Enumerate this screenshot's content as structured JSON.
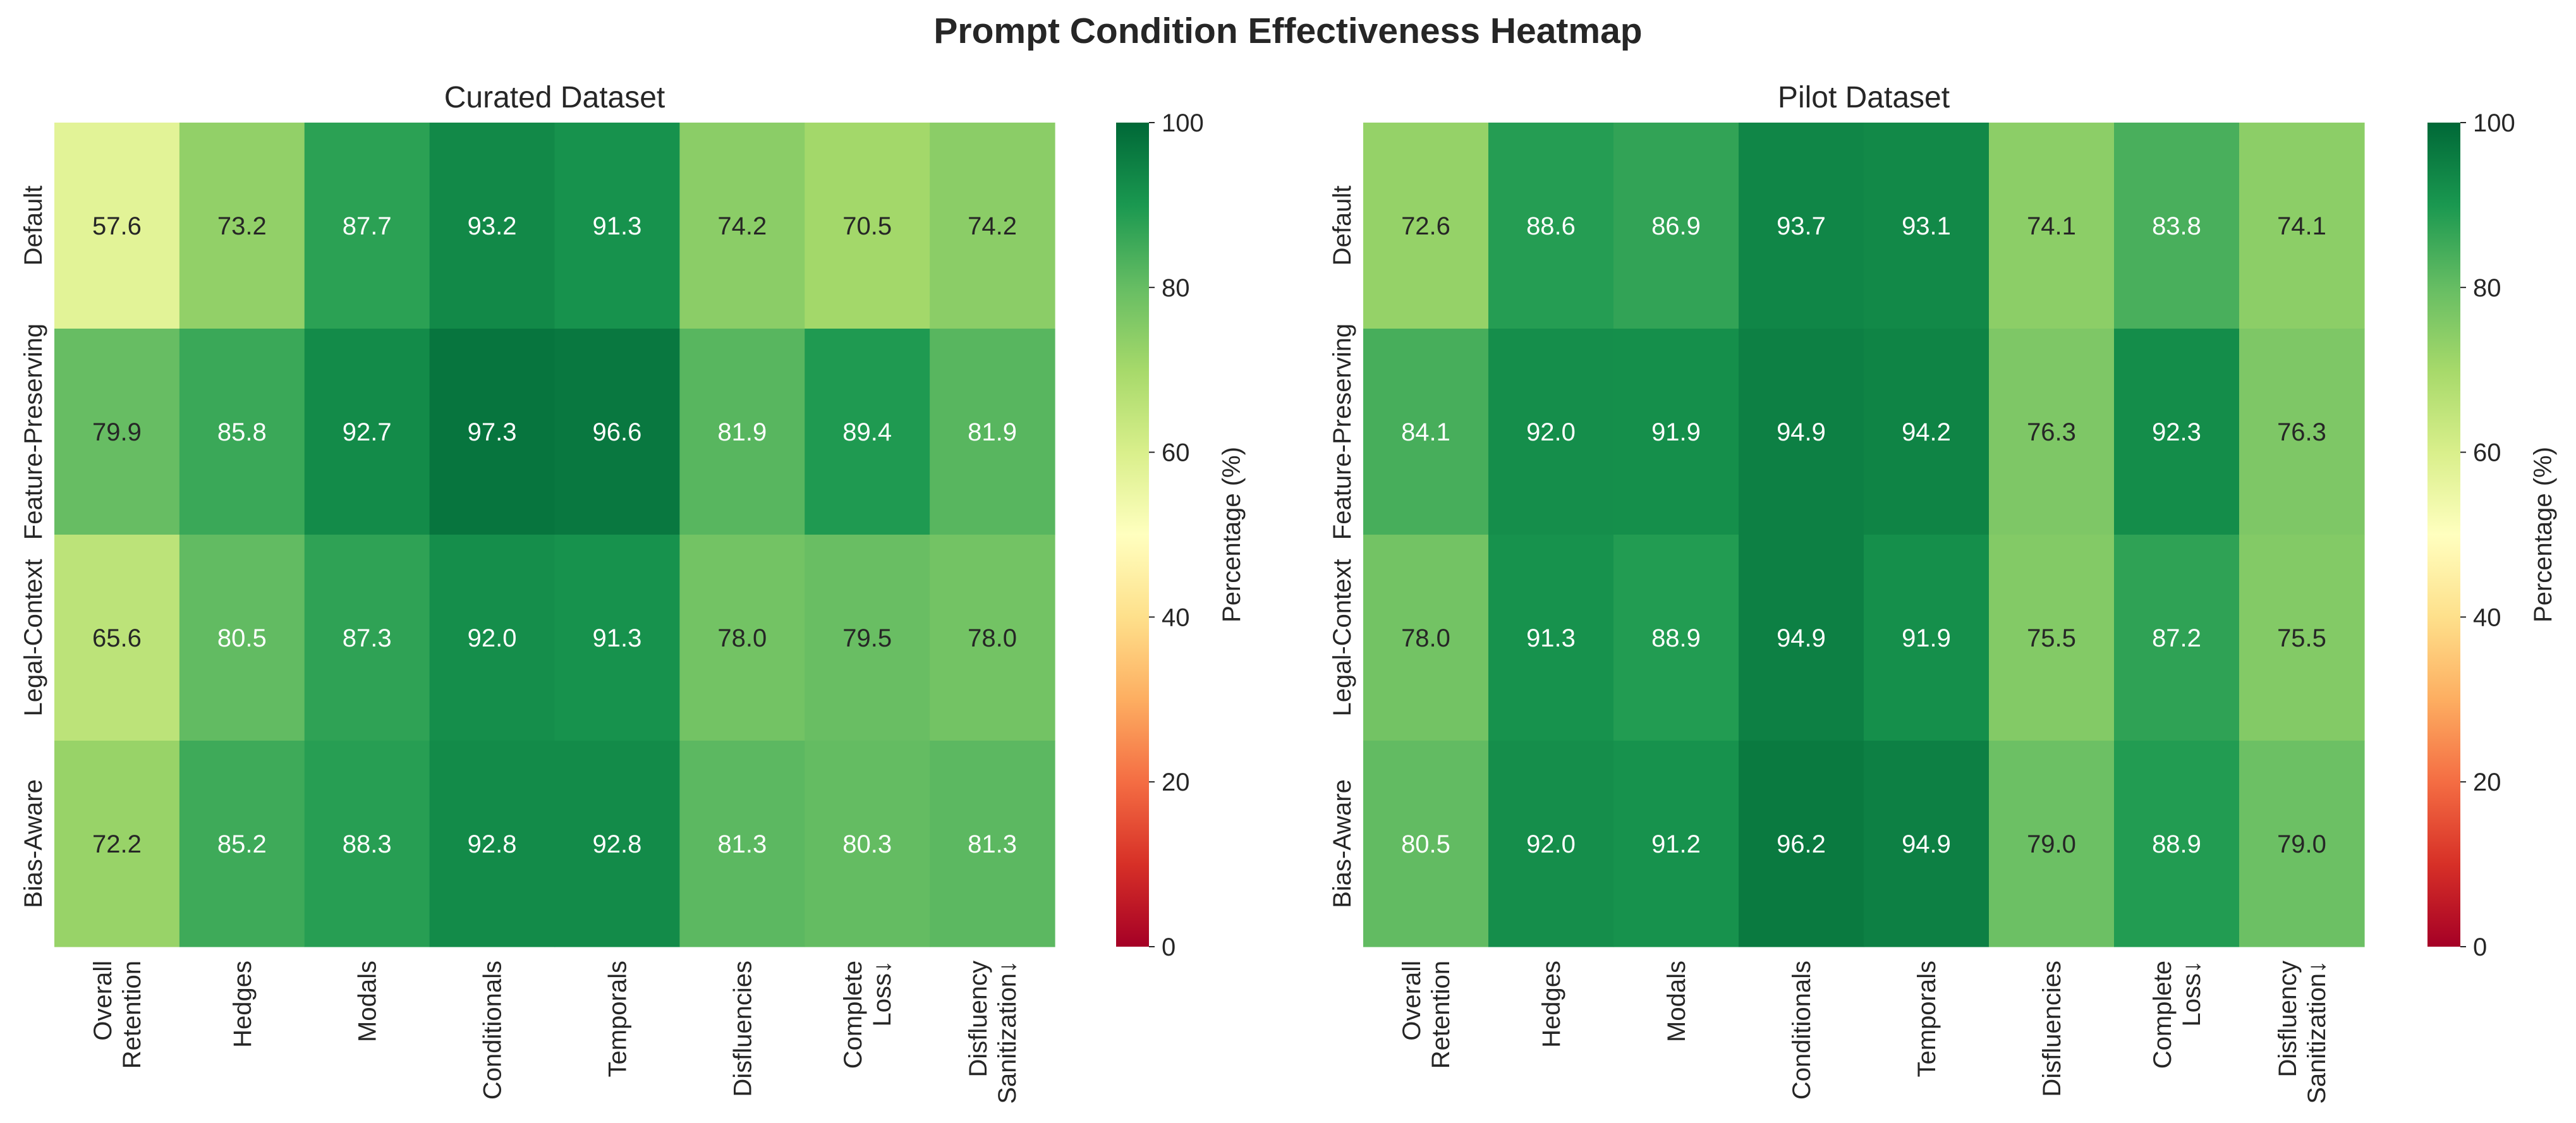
{
  "title": "Prompt Condition Effectiveness Heatmap",
  "chart_data": [
    {
      "type": "heatmap",
      "title": "Curated Dataset",
      "rows": [
        "Default",
        "Feature-Preserving",
        "Legal-Context",
        "Bias-Aware"
      ],
      "columns": [
        [
          "Overall",
          "Retention"
        ],
        [
          "Hedges"
        ],
        [
          "Modals"
        ],
        [
          "Conditionals"
        ],
        [
          "Temporals"
        ],
        [
          "Disfluencies"
        ],
        [
          "Complete",
          "Loss↓"
        ],
        [
          "Disfluency",
          "Sanitization↓"
        ]
      ],
      "values": [
        [
          57.6,
          73.2,
          87.7,
          93.2,
          91.3,
          74.2,
          70.5,
          74.2
        ],
        [
          79.9,
          85.8,
          92.7,
          97.3,
          96.6,
          81.9,
          89.4,
          81.9
        ],
        [
          65.6,
          80.5,
          87.3,
          92.0,
          91.3,
          78.0,
          79.5,
          78.0
        ],
        [
          72.2,
          85.2,
          88.3,
          92.8,
          92.8,
          81.3,
          80.3,
          81.3
        ]
      ],
      "colorbar": {
        "label": "Percentage (%)",
        "range": [
          0,
          100
        ],
        "ticks": [
          0,
          20,
          40,
          60,
          80,
          100
        ],
        "colormap": "RdYlGn"
      }
    },
    {
      "type": "heatmap",
      "title": "Pilot Dataset",
      "rows": [
        "Default",
        "Feature-Preserving",
        "Legal-Context",
        "Bias-Aware"
      ],
      "columns": [
        [
          "Overall",
          "Retention"
        ],
        [
          "Hedges"
        ],
        [
          "Modals"
        ],
        [
          "Conditionals"
        ],
        [
          "Temporals"
        ],
        [
          "Disfluencies"
        ],
        [
          "Complete",
          "Loss↓"
        ],
        [
          "Disfluency",
          "Sanitization↓"
        ]
      ],
      "values": [
        [
          72.6,
          88.6,
          86.9,
          93.7,
          93.1,
          74.1,
          83.8,
          74.1
        ],
        [
          84.1,
          92.0,
          91.9,
          94.9,
          94.2,
          76.3,
          92.3,
          76.3
        ],
        [
          78.0,
          91.3,
          88.9,
          94.9,
          91.9,
          75.5,
          87.2,
          75.5
        ],
        [
          80.5,
          92.0,
          91.2,
          96.2,
          94.9,
          79.0,
          88.9,
          79.0
        ]
      ],
      "colorbar": {
        "label": "Percentage (%)",
        "range": [
          0,
          100
        ],
        "ticks": [
          0,
          20,
          40,
          60,
          80,
          100
        ],
        "colormap": "RdYlGn"
      }
    }
  ]
}
